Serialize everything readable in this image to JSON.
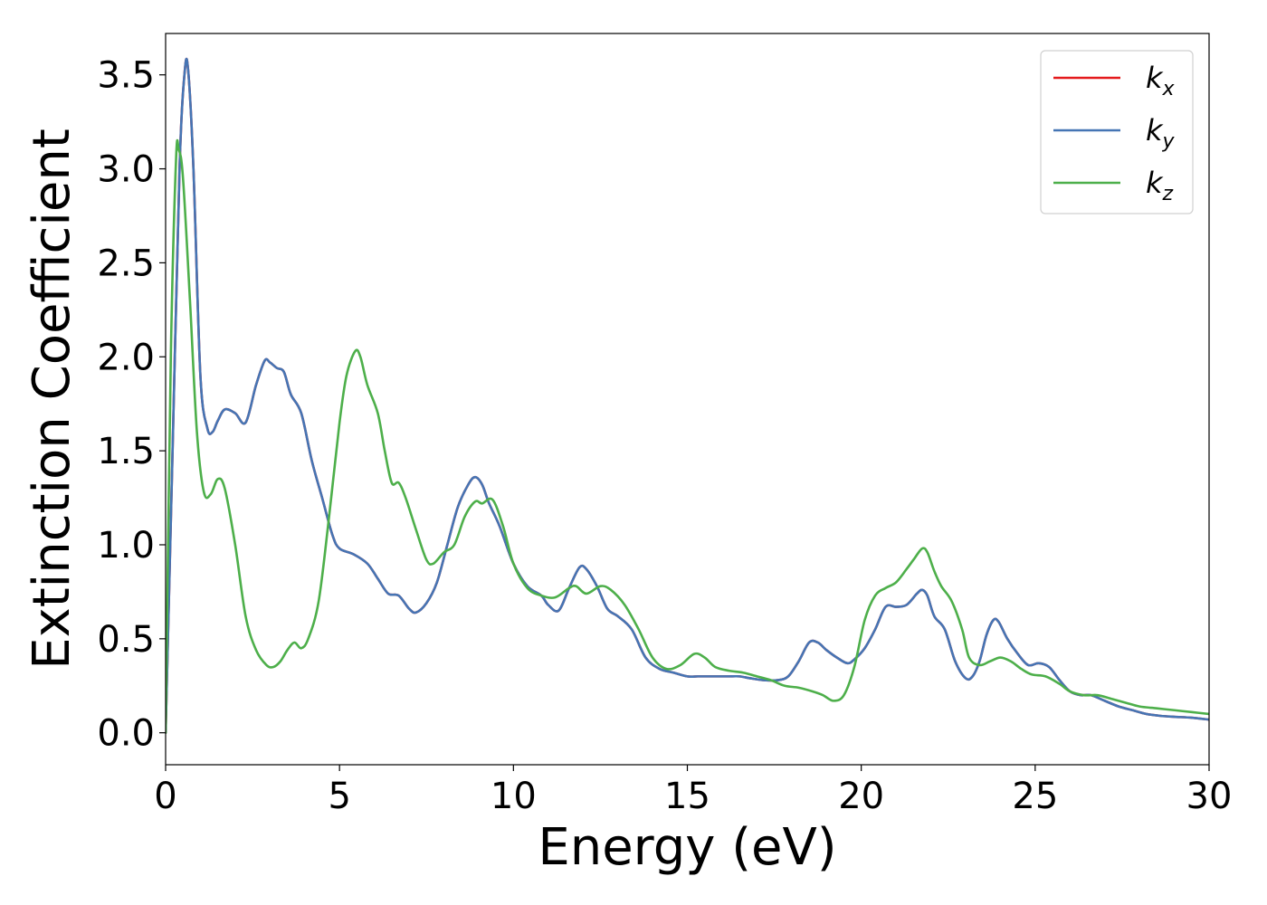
{
  "chart_data": {
    "type": "line",
    "title": "",
    "xlabel": "Energy (eV)",
    "ylabel": "Extinction Coefficient",
    "xlim": [
      0,
      30
    ],
    "ylim": [
      -0.17,
      3.72
    ],
    "xticks": [
      0,
      5,
      10,
      15,
      20,
      25,
      30
    ],
    "xtick_labels": [
      "0",
      "5",
      "10",
      "15",
      "20",
      "25",
      "30"
    ],
    "yticks": [
      0.0,
      0.5,
      1.0,
      1.5,
      2.0,
      2.5,
      3.0,
      3.5
    ],
    "ytick_labels": [
      "0.0",
      "0.5",
      "1.0",
      "1.5",
      "2.0",
      "2.5",
      "3.0",
      "3.5"
    ],
    "grid": false,
    "legend_position": "top-right",
    "series": [
      {
        "name": "k_x",
        "legend_base": "k",
        "legend_sub": "x",
        "color": "#e41a1c",
        "x": [
          0,
          0.2,
          0.4,
          0.55,
          0.65,
          0.8,
          1.0,
          1.2,
          1.35,
          1.5,
          1.7,
          2.0,
          2.3,
          2.6,
          2.85,
          3.0,
          3.2,
          3.4,
          3.6,
          3.9,
          4.2,
          4.5,
          4.8,
          5.0,
          5.4,
          5.8,
          6.1,
          6.4,
          6.7,
          7.0,
          7.2,
          7.5,
          7.8,
          8.1,
          8.4,
          8.7,
          8.9,
          9.1,
          9.3,
          9.6,
          10.0,
          10.4,
          10.8,
          11.0,
          11.3,
          11.6,
          11.9,
          12.1,
          12.4,
          12.7,
          13.0,
          13.4,
          13.8,
          14.2,
          14.6,
          15.0,
          15.3,
          15.6,
          15.9,
          16.2,
          16.5,
          16.8,
          17.2,
          17.6,
          17.9,
          18.2,
          18.5,
          18.75,
          19.0,
          19.3,
          19.6,
          19.8,
          20.1,
          20.4,
          20.7,
          21.0,
          21.3,
          21.6,
          21.75,
          21.9,
          22.1,
          22.4,
          22.7,
          23.0,
          23.2,
          23.4,
          23.6,
          23.8,
          23.95,
          24.2,
          24.5,
          24.8,
          25.1,
          25.4,
          25.7,
          26.0,
          26.3,
          26.6,
          27.0,
          27.4,
          27.8,
          28.2,
          28.6,
          29.0,
          29.5,
          30.0
        ],
        "y": [
          0.0,
          1.5,
          3.0,
          3.52,
          3.52,
          3.0,
          1.9,
          1.62,
          1.6,
          1.66,
          1.72,
          1.7,
          1.65,
          1.85,
          1.98,
          1.97,
          1.94,
          1.92,
          1.8,
          1.7,
          1.45,
          1.25,
          1.05,
          0.98,
          0.95,
          0.9,
          0.82,
          0.74,
          0.73,
          0.66,
          0.64,
          0.69,
          0.8,
          1.0,
          1.2,
          1.32,
          1.36,
          1.32,
          1.22,
          1.1,
          0.9,
          0.78,
          0.73,
          0.68,
          0.65,
          0.77,
          0.88,
          0.87,
          0.78,
          0.66,
          0.62,
          0.55,
          0.4,
          0.34,
          0.32,
          0.3,
          0.3,
          0.3,
          0.3,
          0.3,
          0.3,
          0.29,
          0.28,
          0.28,
          0.3,
          0.38,
          0.48,
          0.48,
          0.44,
          0.4,
          0.37,
          0.39,
          0.45,
          0.55,
          0.67,
          0.67,
          0.68,
          0.74,
          0.76,
          0.73,
          0.62,
          0.55,
          0.38,
          0.29,
          0.3,
          0.38,
          0.52,
          0.6,
          0.59,
          0.5,
          0.42,
          0.36,
          0.37,
          0.35,
          0.28,
          0.22,
          0.2,
          0.2,
          0.17,
          0.14,
          0.12,
          0.1,
          0.09,
          0.085,
          0.08,
          0.07
        ]
      },
      {
        "name": "k_y",
        "legend_base": "k",
        "legend_sub": "y",
        "color": "#4575b4",
        "x": [
          0,
          0.2,
          0.4,
          0.55,
          0.65,
          0.8,
          1.0,
          1.2,
          1.35,
          1.5,
          1.7,
          2.0,
          2.3,
          2.6,
          2.85,
          3.0,
          3.2,
          3.4,
          3.6,
          3.9,
          4.2,
          4.5,
          4.8,
          5.0,
          5.4,
          5.8,
          6.1,
          6.4,
          6.7,
          7.0,
          7.2,
          7.5,
          7.8,
          8.1,
          8.4,
          8.7,
          8.9,
          9.1,
          9.3,
          9.6,
          10.0,
          10.4,
          10.8,
          11.0,
          11.3,
          11.6,
          11.9,
          12.1,
          12.4,
          12.7,
          13.0,
          13.4,
          13.8,
          14.2,
          14.6,
          15.0,
          15.3,
          15.6,
          15.9,
          16.2,
          16.5,
          16.8,
          17.2,
          17.6,
          17.9,
          18.2,
          18.5,
          18.75,
          19.0,
          19.3,
          19.6,
          19.8,
          20.1,
          20.4,
          20.7,
          21.0,
          21.3,
          21.6,
          21.75,
          21.9,
          22.1,
          22.4,
          22.7,
          23.0,
          23.2,
          23.4,
          23.6,
          23.8,
          23.95,
          24.2,
          24.5,
          24.8,
          25.1,
          25.4,
          25.7,
          26.0,
          26.3,
          26.6,
          27.0,
          27.4,
          27.8,
          28.2,
          28.6,
          29.0,
          29.5,
          30.0
        ],
        "y": [
          0.0,
          1.5,
          3.0,
          3.52,
          3.52,
          3.0,
          1.9,
          1.62,
          1.6,
          1.66,
          1.72,
          1.7,
          1.65,
          1.85,
          1.98,
          1.97,
          1.94,
          1.92,
          1.8,
          1.7,
          1.45,
          1.25,
          1.05,
          0.98,
          0.95,
          0.9,
          0.82,
          0.74,
          0.73,
          0.66,
          0.64,
          0.69,
          0.8,
          1.0,
          1.2,
          1.32,
          1.36,
          1.32,
          1.22,
          1.1,
          0.9,
          0.78,
          0.73,
          0.68,
          0.65,
          0.77,
          0.88,
          0.87,
          0.78,
          0.66,
          0.62,
          0.55,
          0.4,
          0.34,
          0.32,
          0.3,
          0.3,
          0.3,
          0.3,
          0.3,
          0.3,
          0.29,
          0.28,
          0.28,
          0.3,
          0.38,
          0.48,
          0.48,
          0.44,
          0.4,
          0.37,
          0.39,
          0.45,
          0.55,
          0.67,
          0.67,
          0.68,
          0.74,
          0.76,
          0.73,
          0.62,
          0.55,
          0.38,
          0.29,
          0.3,
          0.38,
          0.52,
          0.6,
          0.59,
          0.5,
          0.42,
          0.36,
          0.37,
          0.35,
          0.28,
          0.22,
          0.2,
          0.2,
          0.17,
          0.14,
          0.12,
          0.1,
          0.09,
          0.085,
          0.08,
          0.07
        ]
      },
      {
        "name": "k_z",
        "legend_base": "k",
        "legend_sub": "z",
        "color": "#4daf4a",
        "x": [
          0,
          0.15,
          0.3,
          0.38,
          0.5,
          0.7,
          0.9,
          1.1,
          1.3,
          1.5,
          1.7,
          2.0,
          2.3,
          2.6,
          2.9,
          3.1,
          3.3,
          3.5,
          3.7,
          3.9,
          4.1,
          4.4,
          4.7,
          5.0,
          5.2,
          5.45,
          5.6,
          5.8,
          6.1,
          6.3,
          6.5,
          6.7,
          6.9,
          7.2,
          7.5,
          7.7,
          8.0,
          8.3,
          8.6,
          8.9,
          9.1,
          9.4,
          9.7,
          10.0,
          10.4,
          10.8,
          11.2,
          11.6,
          11.8,
          12.1,
          12.5,
          12.8,
          13.2,
          13.6,
          14.0,
          14.4,
          14.8,
          15.2,
          15.5,
          15.8,
          16.2,
          16.6,
          17.0,
          17.4,
          17.8,
          18.2,
          18.6,
          18.9,
          19.2,
          19.5,
          19.8,
          20.1,
          20.4,
          20.7,
          21.0,
          21.3,
          21.5,
          21.75,
          21.9,
          22.1,
          22.3,
          22.6,
          22.9,
          23.1,
          23.4,
          23.7,
          24.0,
          24.3,
          24.6,
          24.9,
          25.3,
          25.7,
          26.0,
          26.4,
          26.8,
          27.2,
          27.6,
          28.0,
          28.5,
          29.0,
          29.5,
          30.0
        ],
        "y": [
          0.0,
          2.0,
          3.05,
          3.1,
          2.95,
          2.3,
          1.6,
          1.28,
          1.27,
          1.35,
          1.3,
          1.0,
          0.62,
          0.44,
          0.36,
          0.35,
          0.38,
          0.44,
          0.48,
          0.45,
          0.5,
          0.7,
          1.15,
          1.65,
          1.9,
          2.03,
          2.0,
          1.85,
          1.7,
          1.5,
          1.33,
          1.33,
          1.25,
          1.08,
          0.92,
          0.9,
          0.96,
          1.0,
          1.15,
          1.23,
          1.22,
          1.24,
          1.1,
          0.9,
          0.77,
          0.73,
          0.72,
          0.77,
          0.78,
          0.74,
          0.78,
          0.76,
          0.68,
          0.55,
          0.4,
          0.34,
          0.36,
          0.42,
          0.4,
          0.35,
          0.33,
          0.32,
          0.3,
          0.28,
          0.25,
          0.24,
          0.22,
          0.2,
          0.17,
          0.2,
          0.35,
          0.6,
          0.73,
          0.77,
          0.8,
          0.87,
          0.92,
          0.98,
          0.96,
          0.86,
          0.78,
          0.7,
          0.55,
          0.4,
          0.36,
          0.38,
          0.4,
          0.38,
          0.34,
          0.31,
          0.3,
          0.26,
          0.22,
          0.2,
          0.2,
          0.18,
          0.16,
          0.14,
          0.13,
          0.12,
          0.11,
          0.1
        ]
      }
    ]
  }
}
